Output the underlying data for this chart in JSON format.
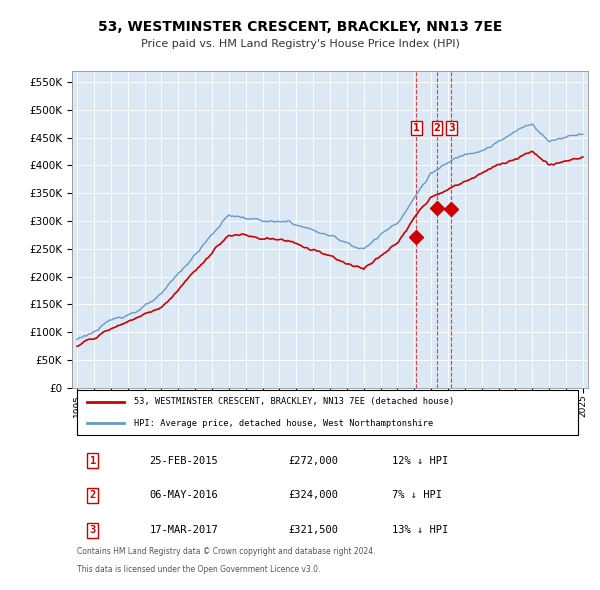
{
  "title": "53, WESTMINSTER CRESCENT, BRACKLEY, NN13 7EE",
  "subtitle": "Price paid vs. HM Land Registry's House Price Index (HPI)",
  "background_color": "#dce9f5",
  "plot_bg_color": "#dce9f5",
  "hpi_color": "#6699cc",
  "sold_color": "#cc0000",
  "ylim": [
    0,
    570000
  ],
  "yticks": [
    0,
    50000,
    100000,
    150000,
    200000,
    250000,
    300000,
    350000,
    400000,
    450000,
    500000,
    550000
  ],
  "x_start_year": 1995,
  "x_end_year": 2025,
  "sales": [
    {
      "label": "1",
      "date": "25-FEB-2015",
      "year": 2015.12,
      "price": 272000,
      "hpi_pct": "12%"
    },
    {
      "label": "2",
      "date": "06-MAY-2016",
      "year": 2016.35,
      "price": 324000,
      "hpi_pct": "7%"
    },
    {
      "label": "3",
      "date": "17-MAR-2017",
      "year": 2017.2,
      "price": 321500,
      "hpi_pct": "13%"
    }
  ],
  "legend_sold_label": "53, WESTMINSTER CRESCENT, BRACKLEY, NN13 7EE (detached house)",
  "legend_hpi_label": "HPI: Average price, detached house, West Northamptonshire",
  "footer1": "Contains HM Land Registry data © Crown copyright and database right 2024.",
  "footer2": "This data is licensed under the Open Government Licence v3.0."
}
